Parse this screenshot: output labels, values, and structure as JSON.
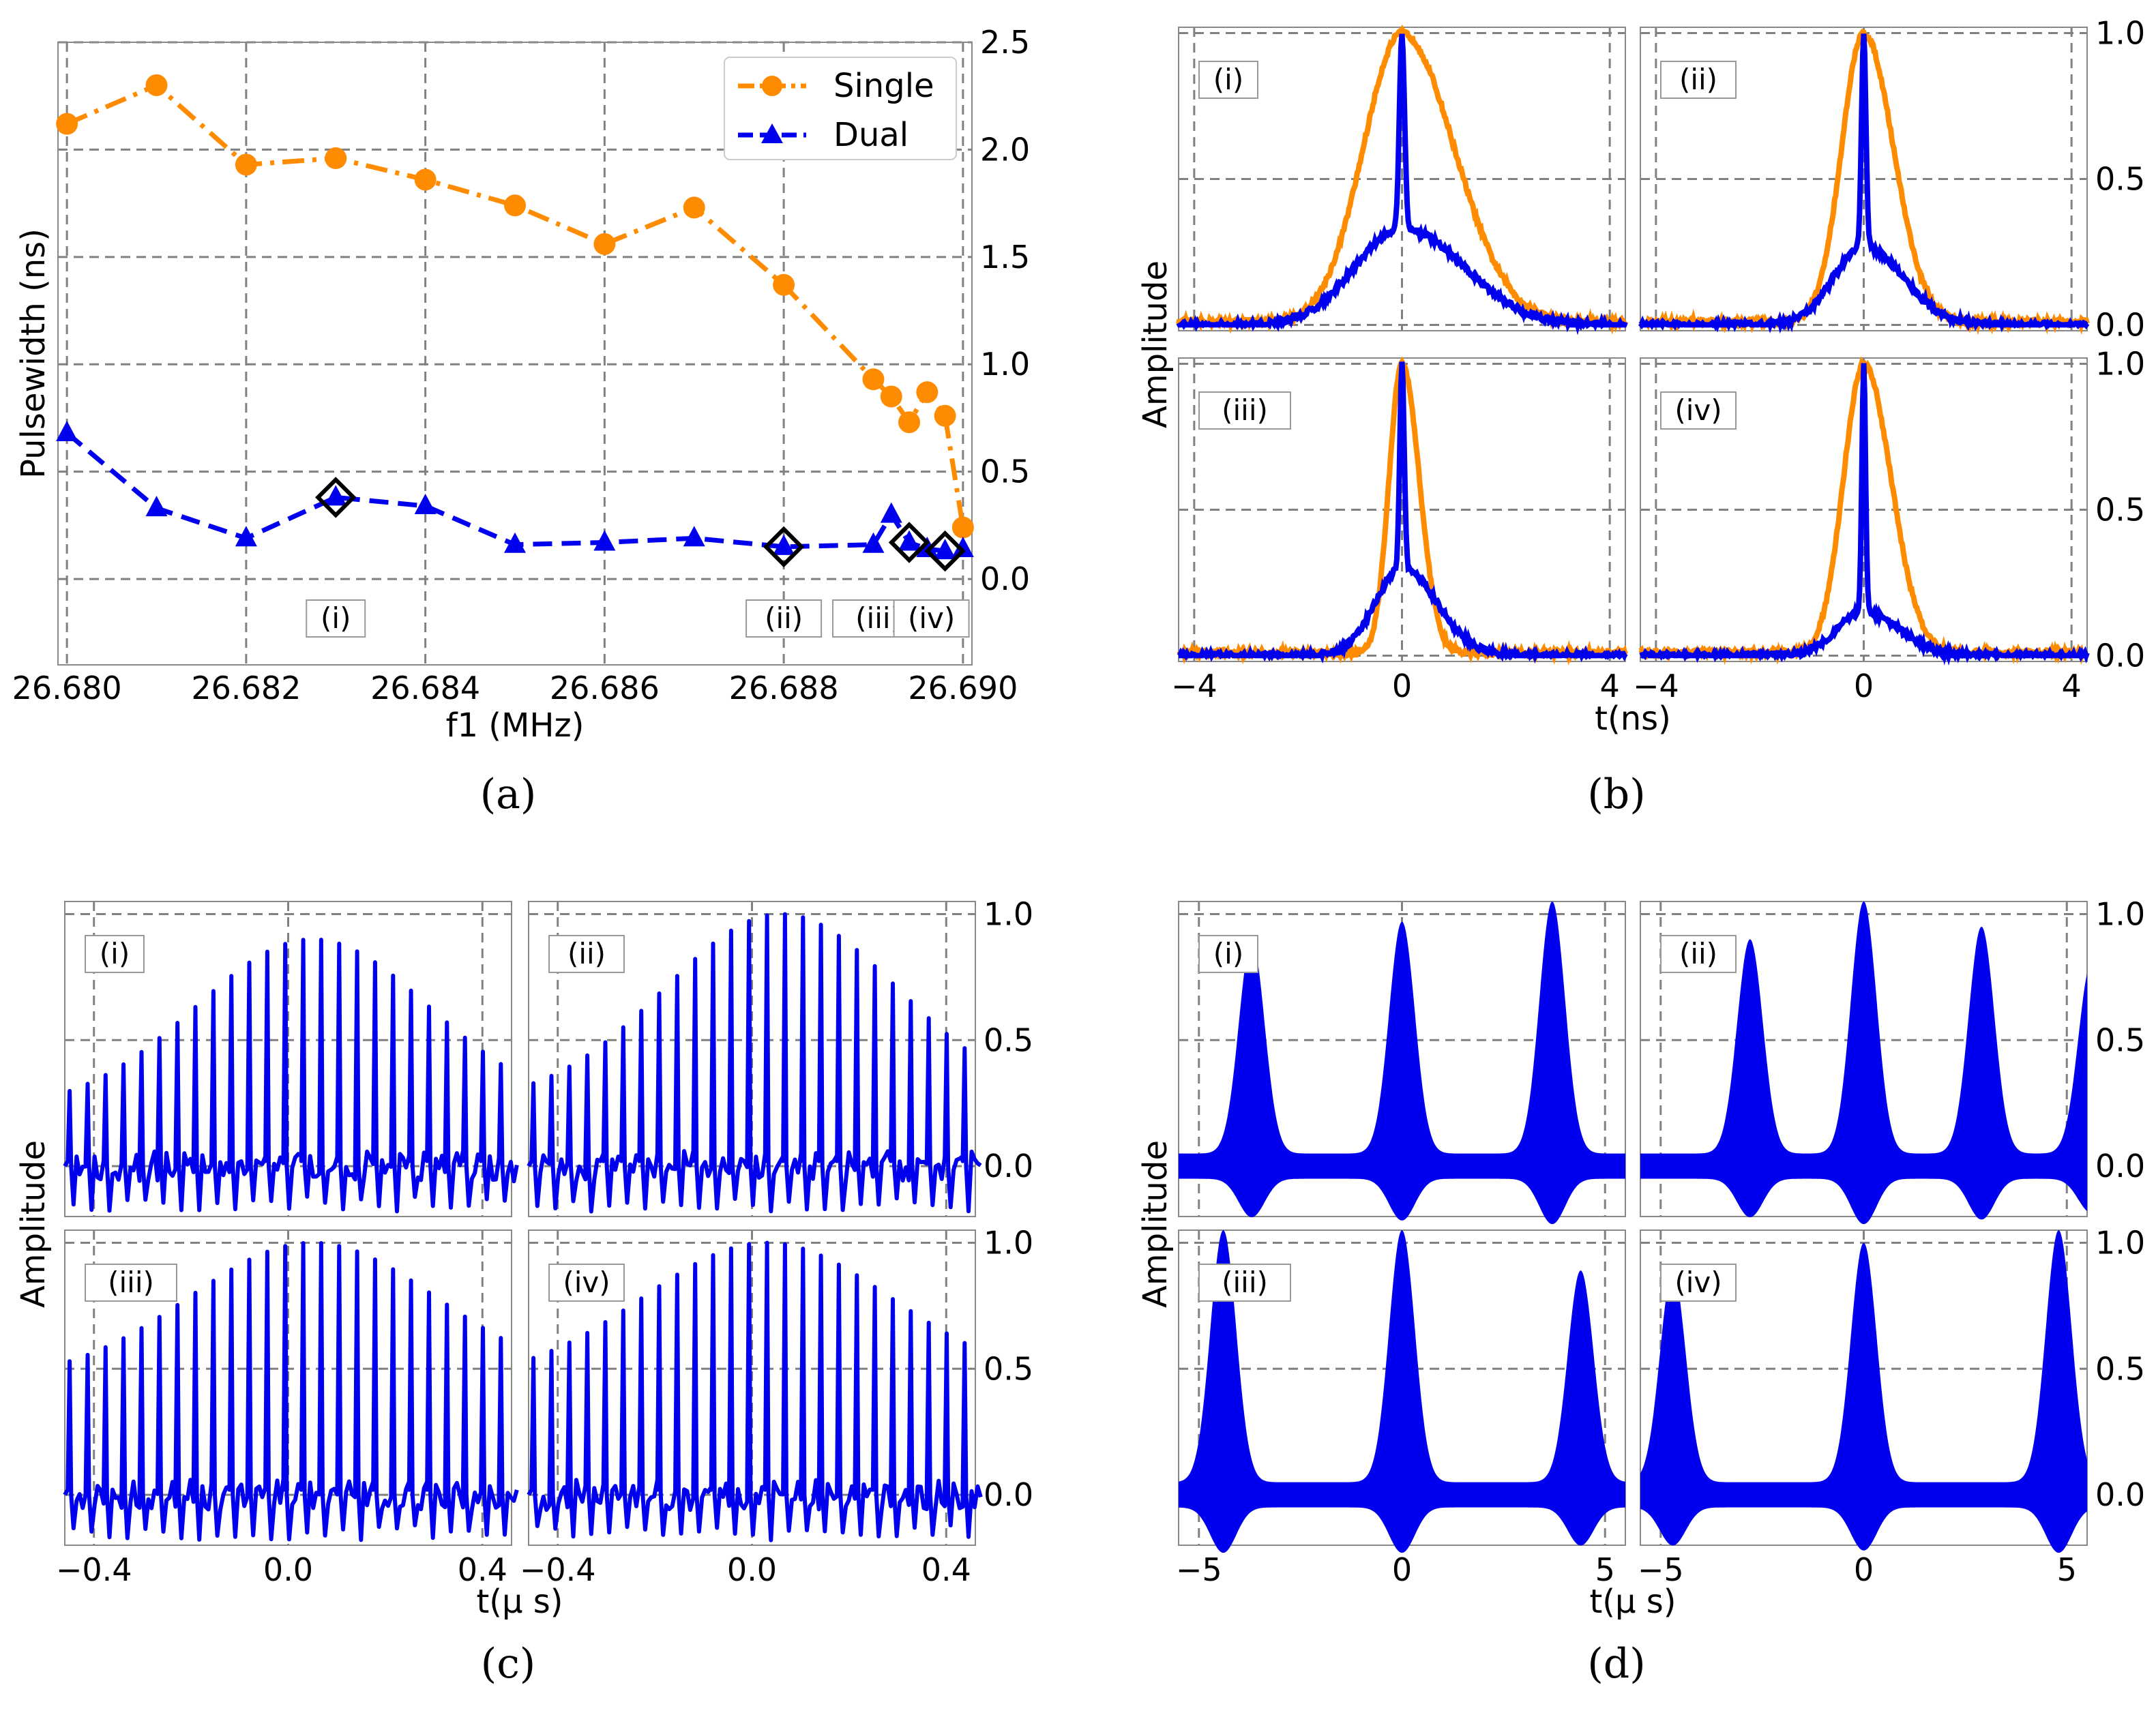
{
  "colors": {
    "single": "#ff8c00",
    "dual": "#0000ee",
    "highlight": "#000000",
    "grid": "#808080"
  },
  "panel_labels": [
    "(a)",
    "(b)",
    "(c)",
    "(d)"
  ],
  "chart_data": [
    {
      "id": "a",
      "type": "line",
      "xlabel": "f1 (MHz)",
      "ylabel": "Pulsewidth (ns)",
      "xlim": [
        26.6799,
        26.6901
      ],
      "ylim": [
        -0.4,
        2.5
      ],
      "xticks": [
        "26.680",
        "26.682",
        "26.684",
        "26.686",
        "26.688",
        "26.690"
      ],
      "yticks": [
        "0.0",
        "0.5",
        "1.0",
        "1.5",
        "2.0",
        "2.5"
      ],
      "grid": true,
      "legend": {
        "placement": "top-right",
        "entries": [
          "Single",
          "Dual"
        ]
      },
      "series": [
        {
          "name": "Single",
          "style": "dash-dot",
          "marker": "circle",
          "x": [
            26.68,
            26.681,
            26.682,
            26.683,
            26.684,
            26.685,
            26.686,
            26.687,
            26.688,
            26.689,
            26.6892,
            26.6894,
            26.6896,
            26.6898,
            26.69
          ],
          "y": [
            2.12,
            2.3,
            1.93,
            1.96,
            1.86,
            1.74,
            1.56,
            1.73,
            1.37,
            0.93,
            0.85,
            0.73,
            0.87,
            0.76,
            0.24
          ]
        },
        {
          "name": "Dual",
          "style": "dashed",
          "marker": "triangle",
          "x": [
            26.68,
            26.681,
            26.682,
            26.683,
            26.684,
            26.685,
            26.686,
            26.687,
            26.688,
            26.689,
            26.6892,
            26.6894,
            26.6896,
            26.6898,
            26.69
          ],
          "y": [
            0.68,
            0.33,
            0.19,
            0.38,
            0.34,
            0.16,
            0.17,
            0.19,
            0.15,
            0.16,
            0.3,
            0.17,
            0.14,
            0.13,
            0.14
          ]
        }
      ],
      "highlighted": [
        {
          "x": 26.683,
          "y": 0.38,
          "label": "(i)"
        },
        {
          "x": 26.688,
          "y": 0.15,
          "label": "(ii)"
        },
        {
          "x": 26.6894,
          "y": 0.17,
          "label": "(iii)"
        },
        {
          "x": 26.6898,
          "y": 0.13,
          "label": "(iv)"
        }
      ]
    },
    {
      "id": "b",
      "type": "line",
      "xlabel": "t(ns)",
      "ylabel": "Amplitude",
      "xlim": [
        -4.3,
        4.3
      ],
      "ylim": [
        -0.02,
        1.02
      ],
      "xticks": [
        "−4",
        "0",
        "4"
      ],
      "yticks": [
        "0.0",
        "0.5",
        "1.0"
      ],
      "grid": true,
      "subplots": [
        {
          "label": "(i)",
          "single_width": 1.05,
          "dual_width": 0.07,
          "dual_shoulder": 0.33,
          "dual_wing": 1.4
        },
        {
          "label": "(ii)",
          "single_width": 0.6,
          "dual_width": 0.06,
          "dual_shoulder": 0.27,
          "dual_wing": 0.9
        },
        {
          "label": "(iii)",
          "single_width": 0.35,
          "dual_width": 0.06,
          "dual_shoulder": 0.3,
          "dual_wing": 0.8
        },
        {
          "label": "(iv)",
          "single_width": 0.55,
          "dual_width": 0.05,
          "dual_shoulder": 0.15,
          "dual_wing": 0.8
        }
      ]
    },
    {
      "id": "c",
      "type": "line",
      "xlabel": "t(μ s)",
      "ylabel": "Amplitude",
      "xlim": [
        -0.46,
        0.46
      ],
      "ylim": [
        -0.2,
        1.05
      ],
      "xticks": [
        "−0.4",
        "0.0",
        "0.4"
      ],
      "yticks": [
        "0.0",
        "0.5",
        "1.0"
      ],
      "grid": true,
      "pulse_period_us": 0.037,
      "subplots": [
        {
          "label": "(i)",
          "envelope_center": 0.05,
          "envelope_width": 0.34,
          "min_peak": 0.22,
          "max_peak": 0.9
        },
        {
          "label": "(ii)",
          "envelope_center": 0.06,
          "envelope_width": 0.34,
          "min_peak": 0.25,
          "max_peak": 1.0
        },
        {
          "label": "(iii)",
          "envelope_center": 0.05,
          "envelope_width": 0.36,
          "min_peak": 0.45,
          "max_peak": 1.0
        },
        {
          "label": "(iv)",
          "envelope_center": 0.03,
          "envelope_width": 0.36,
          "min_peak": 0.45,
          "max_peak": 1.0
        }
      ]
    },
    {
      "id": "d",
      "type": "area",
      "xlabel": "t(μ s)",
      "ylabel": "Amplitude",
      "xlim": [
        -5.5,
        5.5
      ],
      "ylim": [
        -0.2,
        1.05
      ],
      "xticks": [
        "−5",
        "0",
        "5"
      ],
      "yticks": [
        "0.0",
        "0.5",
        "1.0"
      ],
      "grid": true,
      "subplots": [
        {
          "label": "(i)",
          "peaks": [
            [
              -3.7,
              0.85
            ],
            [
              0.0,
              0.92
            ],
            [
              3.7,
              1.0
            ]
          ]
        },
        {
          "label": "(ii)",
          "peaks": [
            [
              -2.8,
              0.85
            ],
            [
              0.0,
              1.0
            ],
            [
              2.9,
              0.9
            ],
            [
              5.6,
              0.75
            ]
          ]
        },
        {
          "label": "(iii)",
          "peaks": [
            [
              -4.4,
              1.0
            ],
            [
              0.0,
              1.0
            ],
            [
              4.4,
              0.84
            ]
          ]
        },
        {
          "label": "(iv)",
          "peaks": [
            [
              -4.7,
              0.84
            ],
            [
              0.0,
              0.95
            ],
            [
              4.8,
              1.0
            ]
          ]
        }
      ]
    }
  ]
}
